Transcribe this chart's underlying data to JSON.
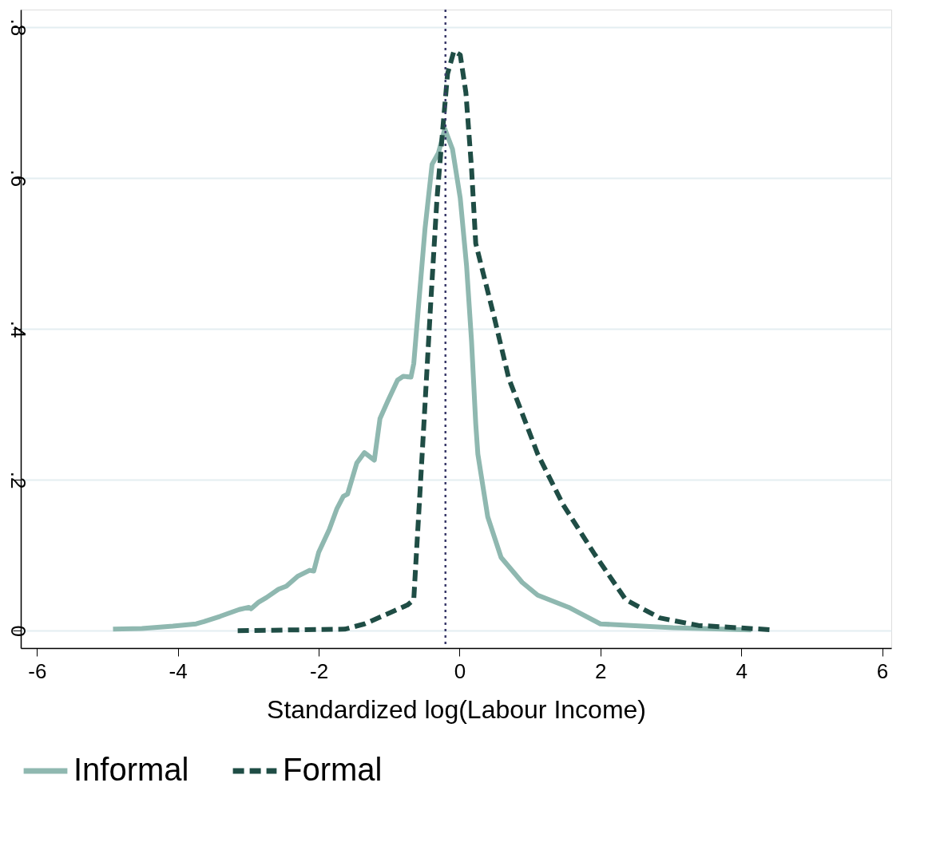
{
  "chart_data": {
    "type": "line",
    "xlabel": "Standardized log(Labour Income)",
    "xlim": [
      -6.23,
      6.13
    ],
    "xticks": [
      -6,
      -4,
      -2,
      0,
      2,
      4,
      6
    ],
    "ylim": [
      -0.023,
      0.823
    ],
    "yticks": [
      {
        "value": 0,
        "label": "0"
      },
      {
        "value": 0.2,
        "label": ".2"
      },
      {
        "value": 0.4,
        "label": ".4"
      },
      {
        "value": 0.6,
        "label": ".6"
      },
      {
        "value": 0.8,
        "label": ".8"
      }
    ],
    "grid": "y",
    "legend": "bottom",
    "ref_lines": [
      {
        "axis": "x",
        "value": -0.2,
        "color": "#3b3b6b",
        "line_style": "dotted"
      }
    ],
    "series": [
      {
        "name": "Informal",
        "color": "#8fb8b0",
        "line_style": "solid",
        "x": [
          -4.92,
          -4.51,
          -4.07,
          -3.74,
          -3.63,
          -3.4,
          -3.13,
          -2.99,
          -2.96,
          -2.85,
          -2.74,
          -2.57,
          -2.46,
          -2.3,
          -2.13,
          -2.07,
          -2.0,
          -1.85,
          -1.74,
          -1.65,
          -1.59,
          -1.46,
          -1.35,
          -1.21,
          -1.13,
          -1.02,
          -0.88,
          -0.8,
          -0.69,
          -0.65,
          -0.58,
          -0.49,
          -0.39,
          -0.3,
          -0.21,
          -0.1,
          0.01,
          0.1,
          0.17,
          0.23,
          0.26,
          0.4,
          0.59,
          0.89,
          1.11,
          1.55,
          2.0,
          3.03,
          4.14
        ],
        "values": [
          0.002,
          0.003,
          0.006,
          0.009,
          0.012,
          0.019,
          0.028,
          0.031,
          0.029,
          0.038,
          0.044,
          0.055,
          0.059,
          0.072,
          0.08,
          0.079,
          0.104,
          0.134,
          0.162,
          0.178,
          0.181,
          0.222,
          0.236,
          0.226,
          0.281,
          0.304,
          0.332,
          0.337,
          0.336,
          0.354,
          0.433,
          0.533,
          0.618,
          0.633,
          0.665,
          0.638,
          0.573,
          0.483,
          0.384,
          0.274,
          0.234,
          0.151,
          0.097,
          0.064,
          0.047,
          0.031,
          0.009,
          0.004,
          0.001
        ]
      },
      {
        "name": "Formal",
        "color": "#1f4d45",
        "line_style": "dashed",
        "x": [
          -3.15,
          -1.63,
          -1.35,
          -1.08,
          -0.74,
          -0.65,
          -0.63,
          -0.58,
          -0.5,
          -0.41,
          -0.32,
          -0.24,
          -0.17,
          -0.08,
          0.01,
          0.09,
          0.17,
          0.23,
          0.48,
          0.7,
          1.11,
          1.47,
          1.92,
          2.36,
          2.84,
          3.39,
          4.47
        ],
        "values": [
          0.0,
          0.002,
          0.009,
          0.02,
          0.034,
          0.041,
          0.074,
          0.154,
          0.284,
          0.433,
          0.573,
          0.663,
          0.738,
          0.768,
          0.763,
          0.713,
          0.613,
          0.513,
          0.42,
          0.334,
          0.234,
          0.167,
          0.101,
          0.041,
          0.017,
          0.007,
          0.001
        ]
      }
    ]
  }
}
